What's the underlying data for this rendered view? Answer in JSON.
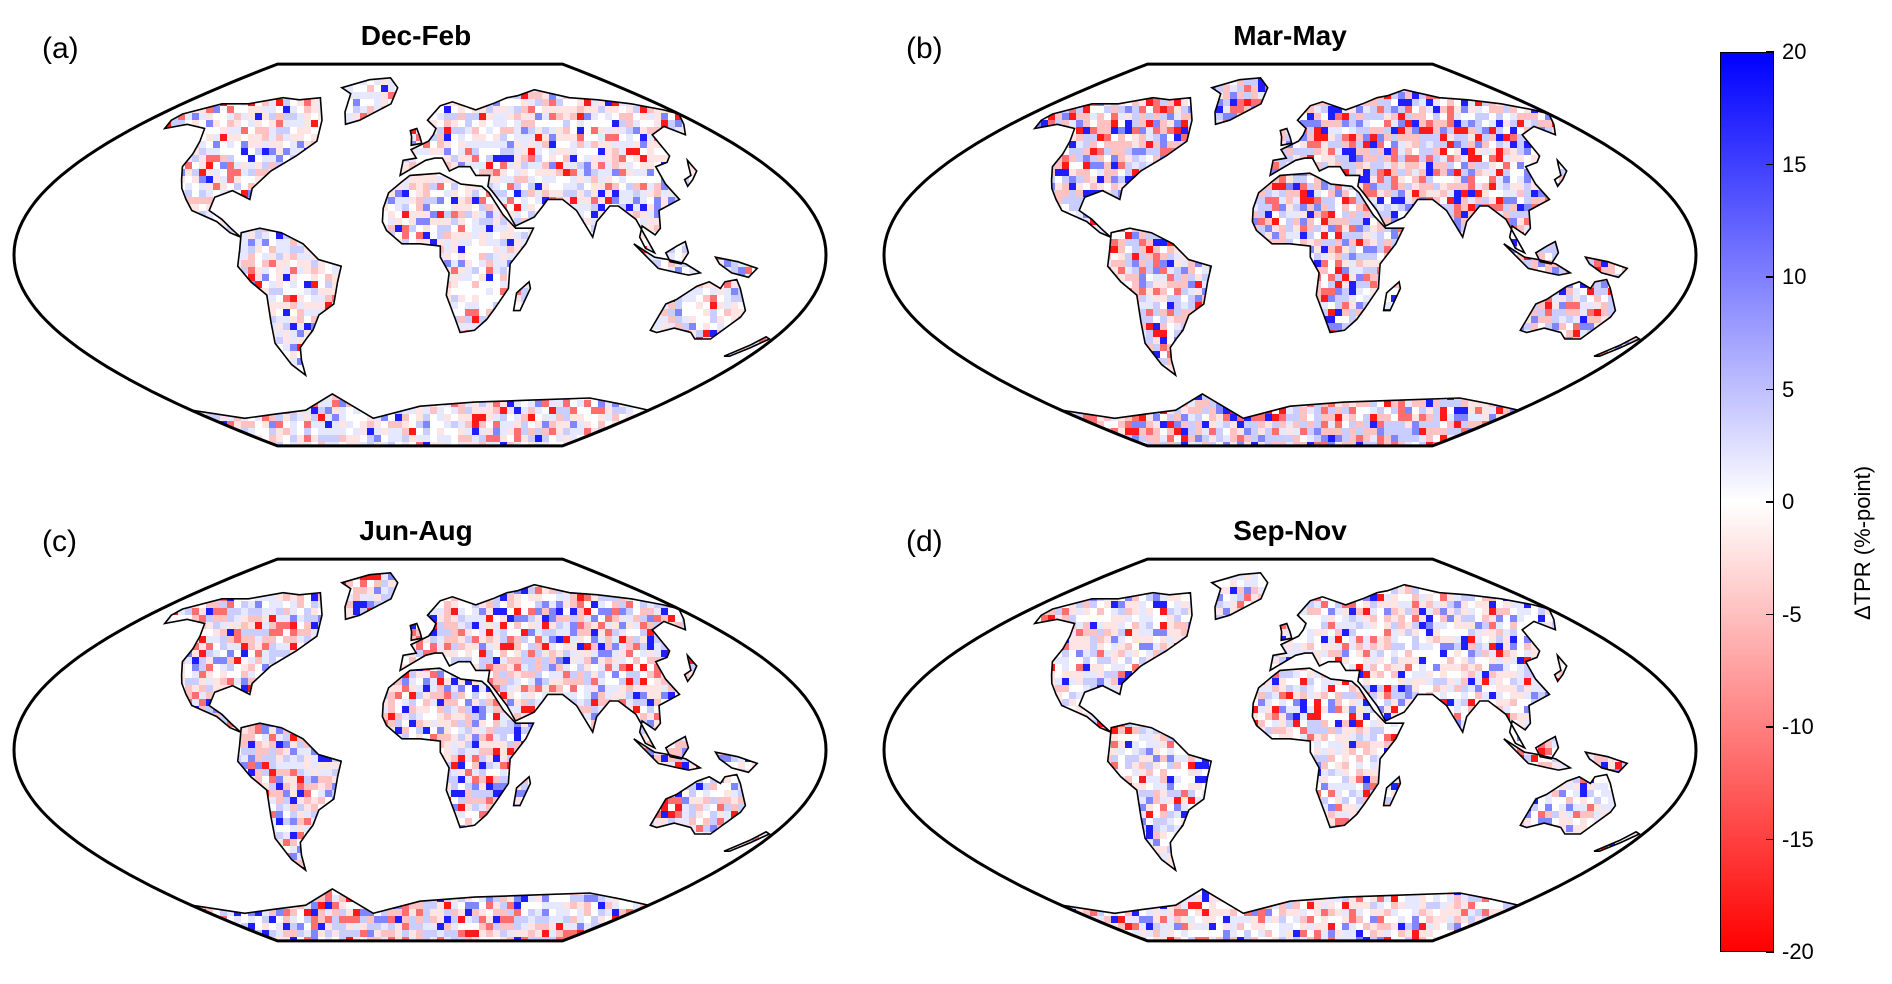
{
  "figure": {
    "panels": [
      {
        "letter": "(a)",
        "title": "Dec-Feb",
        "palette": [
          "#ffffff",
          "#e6e8ff",
          "#ffe4e4",
          "#c9cdff",
          "#ffc2c2",
          "#7f86ff",
          "#ff6e6e",
          "#1e1eff",
          "#ff1a1a"
        ],
        "intensity": 0.35
      },
      {
        "letter": "(b)",
        "title": "Mar-May",
        "palette": [
          "#ffffff",
          "#e6e8ff",
          "#ffe4e4",
          "#c9cdff",
          "#ffc2c2",
          "#7f86ff",
          "#ff6e6e",
          "#1e1eff",
          "#ff1a1a"
        ],
        "intensity": 0.75
      },
      {
        "letter": "(c)",
        "title": "Jun-Aug",
        "palette": [
          "#ffffff",
          "#e6e8ff",
          "#ffe4e4",
          "#c9cdff",
          "#ffc2c2",
          "#7f86ff",
          "#ff6e6e",
          "#1e1eff",
          "#ff1a1a"
        ],
        "intensity": 0.6
      },
      {
        "letter": "(d)",
        "title": "Sep-Nov",
        "palette": [
          "#ffffff",
          "#e6e8ff",
          "#ffe4e4",
          "#c9cdff",
          "#ffc2c2",
          "#7f86ff",
          "#ff6e6e",
          "#1e1eff",
          "#ff1a1a"
        ],
        "intensity": 0.4
      }
    ],
    "colorbar": {
      "label": "ΔTPR (%-point)",
      "ticks": [
        "20",
        "15",
        "10",
        "5",
        "0",
        "-5",
        "-10",
        "-15",
        "-20"
      ],
      "min": -20,
      "max": 20,
      "color_max": "#0000ff",
      "color_mid": "#ffffff",
      "color_min": "#ff0000"
    }
  }
}
